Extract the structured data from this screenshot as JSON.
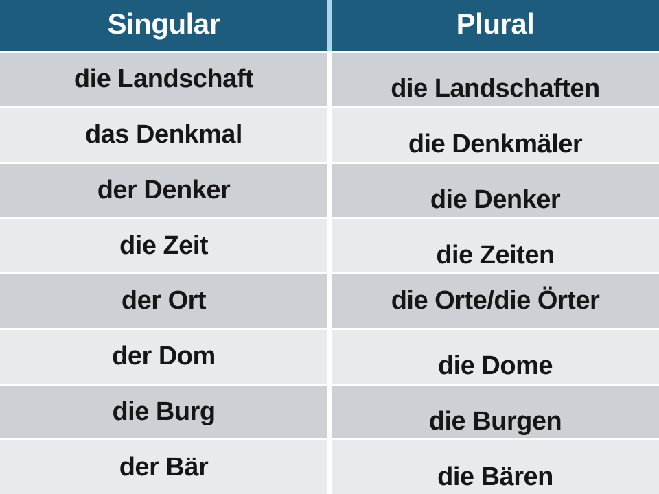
{
  "table": {
    "columns": [
      "Singular",
      "Plural"
    ],
    "rows": [
      {
        "singular": "die Landschaft",
        "plural": "die Landschaften"
      },
      {
        "singular": "das Denkmal",
        "plural": "die Denkmäler"
      },
      {
        "singular": "der Denker",
        "plural": "die Denker"
      },
      {
        "singular": "die Zeit",
        "plural": "die Zeiten"
      },
      {
        "singular": "der Ort",
        "plural": "die Orte/die Örter"
      },
      {
        "singular": "der Dom",
        "plural": "die Dome"
      },
      {
        "singular": "die Burg",
        "plural": "die Burgen"
      },
      {
        "singular": "der Bär",
        "plural": "die Bären"
      }
    ]
  },
  "colors": {
    "header_bg": "#1E5C7E",
    "header_text": "#FFFFFF",
    "header_divider": "#ABD6EB",
    "row_dark": "#CDD1D5",
    "row_light": "#E8EAED",
    "row_divider": "#FFFFFF",
    "cell_text": "#161616"
  }
}
